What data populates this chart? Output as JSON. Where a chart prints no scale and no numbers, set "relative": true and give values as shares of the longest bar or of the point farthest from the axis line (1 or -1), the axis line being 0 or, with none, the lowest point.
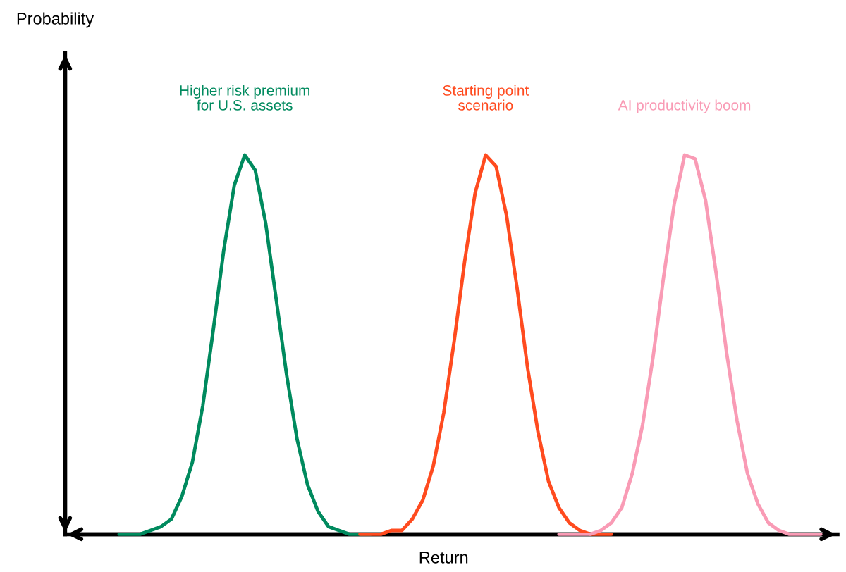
{
  "chart_data": {
    "type": "line",
    "relative": true,
    "xlabel": "Return",
    "annotations": [
      "Probability"
    ],
    "categories": [
      null,
      null,
      null,
      null,
      null,
      null,
      null,
      null,
      null,
      null,
      null,
      null,
      null,
      null,
      null,
      null,
      null,
      null,
      null,
      null,
      null,
      null,
      null,
      null,
      null,
      null,
      null,
      null,
      null,
      null,
      null,
      null,
      null,
      null,
      null,
      null,
      null,
      null,
      null,
      null,
      null,
      null,
      null,
      null,
      null,
      null,
      null,
      null,
      null,
      null,
      null,
      null,
      null,
      null,
      null,
      null,
      null,
      null,
      null,
      null,
      null,
      null,
      null,
      null,
      null,
      null,
      null,
      null,
      null,
      null,
      null,
      null,
      null,
      null
    ],
    "series": [
      {
        "name": "Higher risk premium\nfor U.S. assets",
        "color": "#008a5e",
        "values": [
          null,
          null,
          null,
          null,
          null,
          0,
          0,
          0,
          0.01,
          0.02,
          0.04,
          0.1,
          0.19,
          0.34,
          0.54,
          0.75,
          0.92,
          1,
          0.96,
          0.82,
          0.62,
          0.42,
          0.25,
          0.13,
          0.06,
          0.02,
          0.01,
          0,
          0,
          0,
          null,
          null,
          null,
          null,
          null,
          null,
          null,
          null,
          null,
          null,
          null,
          null,
          null,
          null,
          null,
          null,
          null,
          null,
          null,
          null,
          null,
          null,
          null,
          null,
          null,
          null,
          null,
          null,
          null,
          null,
          null,
          null,
          null,
          null,
          null,
          null,
          null,
          null,
          null,
          null,
          null,
          null,
          null,
          null
        ]
      },
      {
        "name": "Starting point\nscenario",
        "color": "#ff4b1f",
        "values": [
          null,
          null,
          null,
          null,
          null,
          null,
          null,
          null,
          null,
          null,
          null,
          null,
          null,
          null,
          null,
          null,
          null,
          null,
          null,
          null,
          null,
          null,
          null,
          null,
          null,
          null,
          null,
          null,
          0,
          0,
          0,
          0.01,
          0.01,
          0.04,
          0.09,
          0.18,
          0.32,
          0.51,
          0.72,
          0.9,
          1,
          0.97,
          0.84,
          0.65,
          0.44,
          0.27,
          0.14,
          0.07,
          0.03,
          0.01,
          0,
          0,
          0,
          null,
          null,
          null,
          null,
          null,
          null,
          null,
          null,
          null,
          null,
          null,
          null,
          null,
          null,
          null,
          null,
          null,
          null,
          null,
          null,
          null
        ]
      },
      {
        "name": "AI productivity boom",
        "color": "#f99bb5",
        "values": [
          null,
          null,
          null,
          null,
          null,
          null,
          null,
          null,
          null,
          null,
          null,
          null,
          null,
          null,
          null,
          null,
          null,
          null,
          null,
          null,
          null,
          null,
          null,
          null,
          null,
          null,
          null,
          null,
          null,
          null,
          null,
          null,
          null,
          null,
          null,
          null,
          null,
          null,
          null,
          null,
          null,
          null,
          null,
          null,
          null,
          null,
          null,
          0,
          0,
          0,
          0,
          0.01,
          0.03,
          0.07,
          0.16,
          0.29,
          0.47,
          0.68,
          0.87,
          1,
          0.99,
          0.88,
          0.69,
          0.48,
          0.3,
          0.16,
          0.08,
          0.03,
          0.01,
          0,
          0,
          0,
          0,
          null
        ]
      }
    ],
    "legend": false,
    "marker": "none",
    "line_style": "solid"
  }
}
